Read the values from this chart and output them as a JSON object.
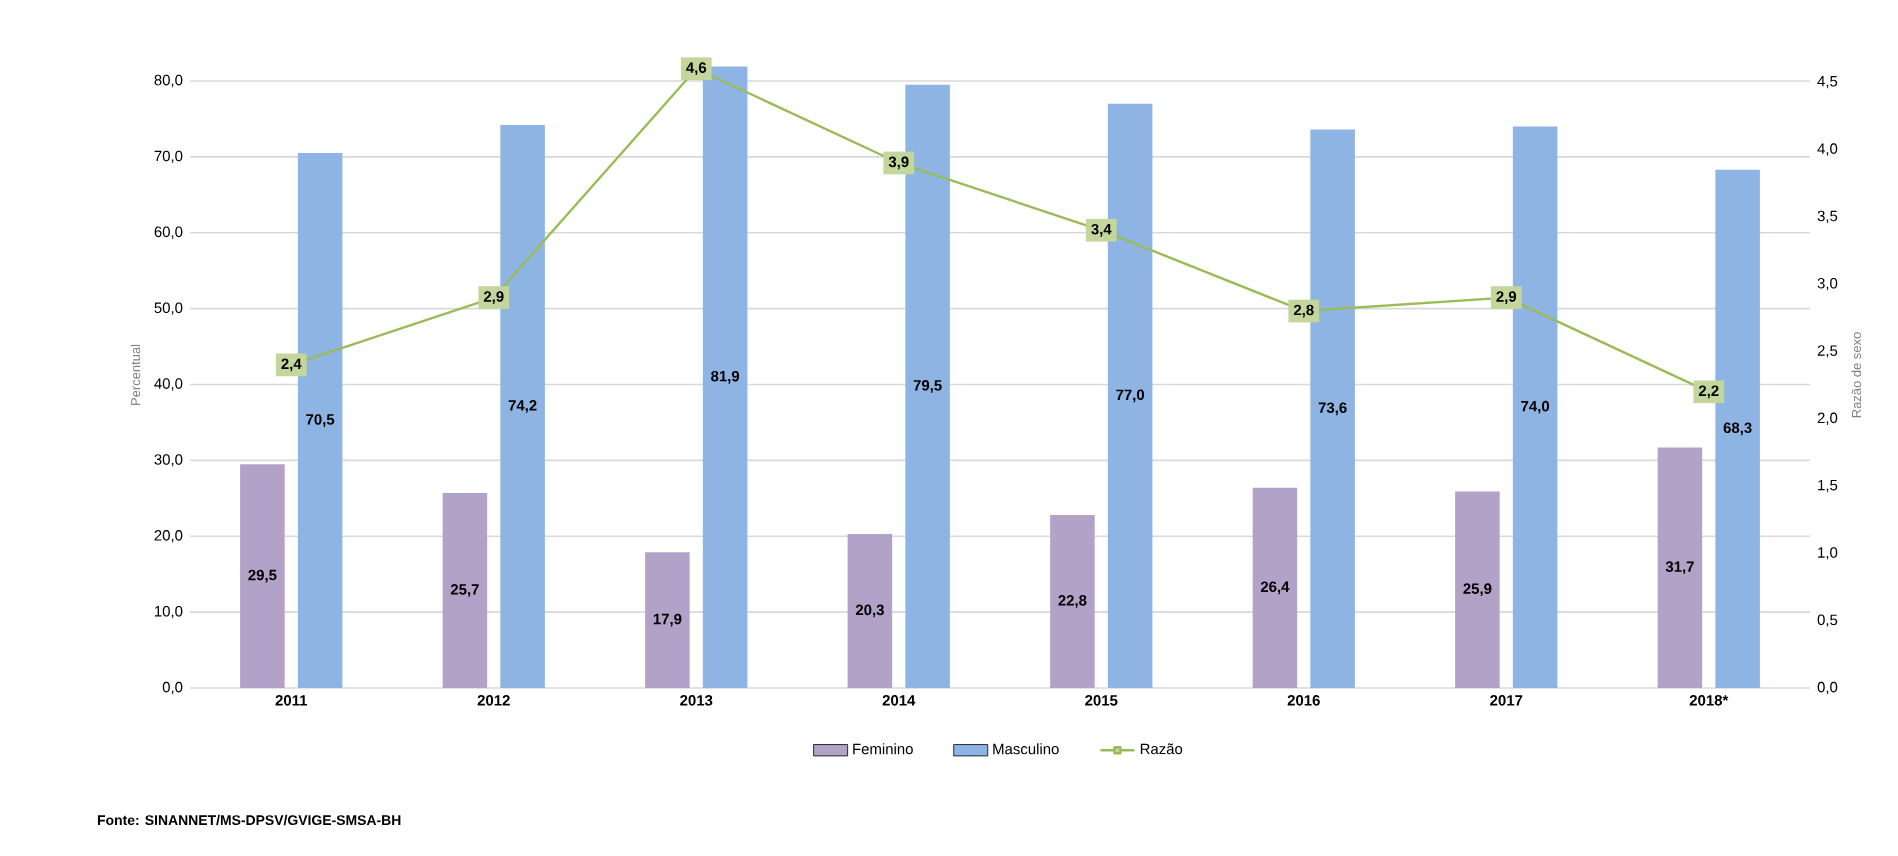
{
  "chart_data": {
    "type": "bar",
    "categories": [
      "2011",
      "2012",
      "2013",
      "2014",
      "2015",
      "2016",
      "2017",
      "2018*"
    ],
    "series": [
      {
        "name": "Feminino",
        "color": "#b3a2c7",
        "values": [
          29.5,
          25.7,
          17.9,
          20.3,
          22.8,
          26.4,
          25.9,
          31.7
        ],
        "value_labels": [
          "29,5",
          "25,7",
          "17,9",
          "20,3",
          "22,8",
          "26,4",
          "25,9",
          "31,7"
        ]
      },
      {
        "name": "Masculino",
        "color": "#8eb4e3",
        "values": [
          70.5,
          74.2,
          81.9,
          79.5,
          77.0,
          73.6,
          74.0,
          68.3
        ],
        "value_labels": [
          "70,5",
          "74,2",
          "81,9",
          "79,5",
          "77,0",
          "73,6",
          "74,0",
          "68,3"
        ]
      },
      {
        "name": "Razão",
        "type": "line",
        "axis": "y2",
        "marker": "square",
        "color": "#9bbb59",
        "values": [
          2.4,
          2.9,
          4.6,
          3.9,
          3.4,
          2.8,
          2.9,
          2.2
        ],
        "value_labels": [
          "2,4",
          "2,9",
          "4,6",
          "3,9",
          "3,4",
          "2,8",
          "2,9",
          "2,2"
        ]
      }
    ],
    "ylabel": "Percentual",
    "y2label": "Razão de sexo",
    "ylim": [
      0,
      82.5
    ],
    "yticks": [
      {
        "value": 0,
        "label": "0,0"
      },
      {
        "value": 10,
        "label": "10,0"
      },
      {
        "value": 20,
        "label": "20,0"
      },
      {
        "value": 30,
        "label": "30,0"
      },
      {
        "value": 40,
        "label": "40,0"
      },
      {
        "value": 50,
        "label": "50,0"
      },
      {
        "value": 60,
        "label": "60,0"
      },
      {
        "value": 70,
        "label": "70,0"
      },
      {
        "value": 80,
        "label": "80,0"
      }
    ],
    "y2lim": [
      0,
      4.65
    ],
    "y2ticks": [
      {
        "value": 0,
        "label": "0,0"
      },
      {
        "value": 0.5,
        "label": "0,5"
      },
      {
        "value": 1,
        "label": "1,0"
      },
      {
        "value": 1.5,
        "label": "1,5"
      },
      {
        "value": 2,
        "label": "2,0"
      },
      {
        "value": 2.5,
        "label": "2,5"
      },
      {
        "value": 3,
        "label": "3,0"
      },
      {
        "value": 3.5,
        "label": "3,5"
      },
      {
        "value": 4,
        "label": "4,0"
      },
      {
        "value": 4.5,
        "label": "4,5"
      }
    ],
    "grid": "y",
    "legend": "bottom",
    "annotations": [
      "Fonte: SINANNET/MS-DPSV/GVIGE-SMSA-BH"
    ]
  }
}
